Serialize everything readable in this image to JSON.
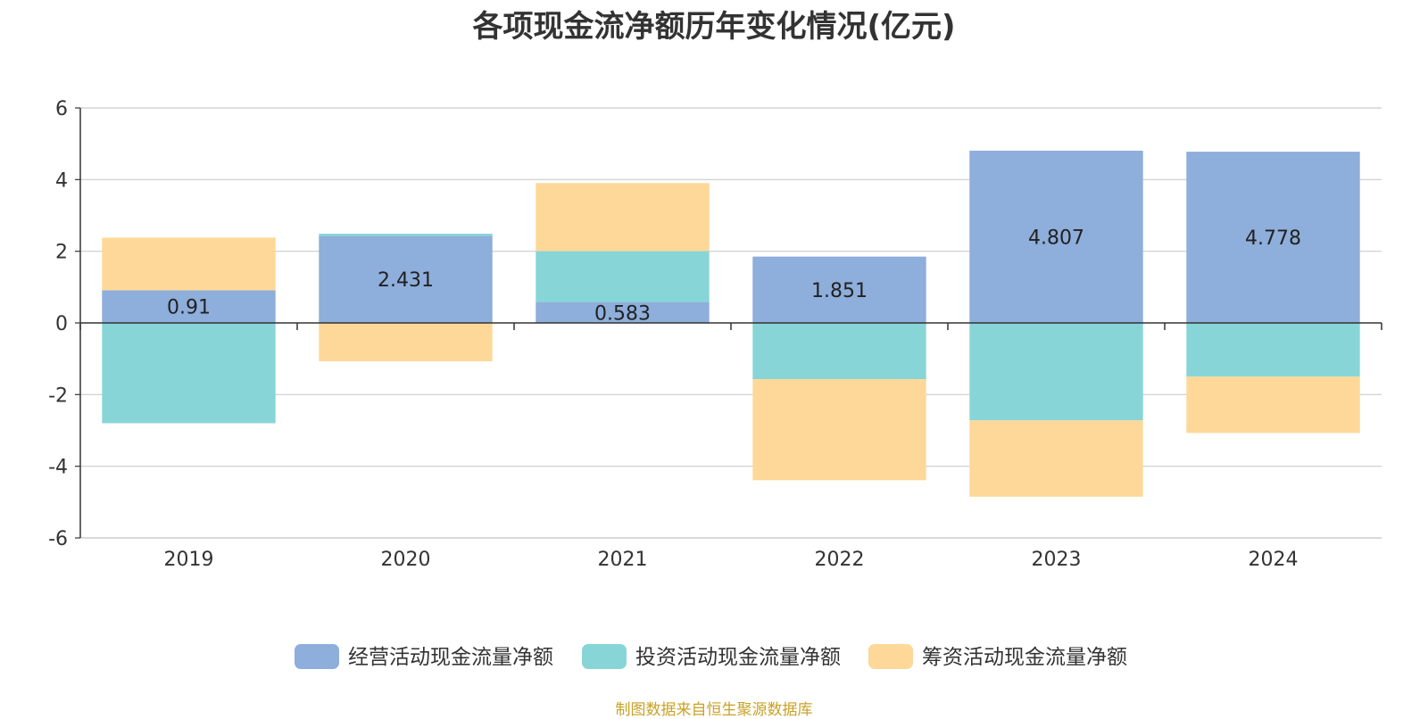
{
  "chart_data": {
    "type": "bar",
    "stacked": true,
    "title": "各项现金流净额历年变化情况(亿元)",
    "categories": [
      "2019",
      "2020",
      "2021",
      "2022",
      "2023",
      "2024"
    ],
    "ylim": [
      -6,
      6
    ],
    "yticks": [
      6,
      4,
      2,
      0,
      -2,
      -4,
      -6
    ],
    "grid": true,
    "legend_position": "bottom",
    "series": [
      {
        "name": "经营活动现金流量净额",
        "color": "#8eaedb",
        "values": [
          0.91,
          2.431,
          0.583,
          1.851,
          4.807,
          4.778
        ],
        "labels": [
          "0.91",
          "2.431",
          "0.583",
          "1.851",
          "4.807",
          "4.778"
        ]
      },
      {
        "name": "投资活动现金流量净额",
        "color": "#88d5d8",
        "values": [
          -2.8,
          0.06,
          1.42,
          -1.57,
          -2.72,
          -1.5
        ]
      },
      {
        "name": "筹资活动现金流量净额",
        "color": "#fed898",
        "values": [
          1.47,
          -1.07,
          1.9,
          -2.82,
          -2.13,
          -1.57
        ]
      }
    ],
    "source": "制图数据来自恒生聚源数据库"
  }
}
